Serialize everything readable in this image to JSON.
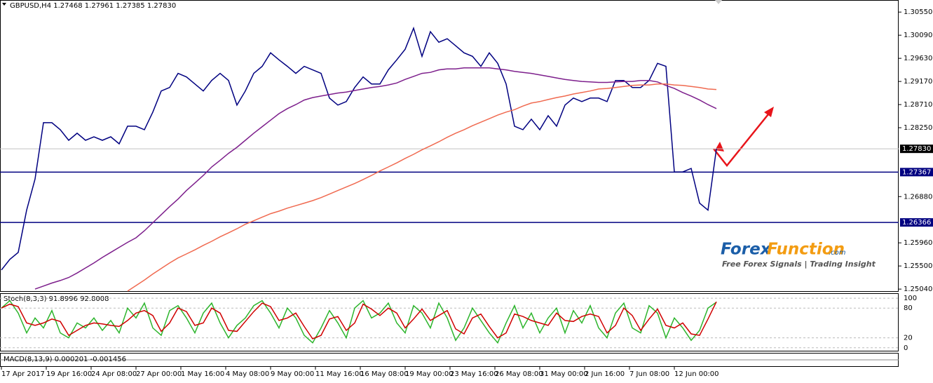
{
  "chart_data": {
    "type": "line",
    "title": "GBPUSD,H4  1.27468 1.27961 1.27385 1.27830",
    "x_labels": [
      "17 Apr 2017",
      "19 Apr 16:00",
      "24 Apr 08:00",
      "27 Apr 00:00",
      "1 May 16:00",
      "4 May 08:00",
      "9 May 00:00",
      "11 May 16:00",
      "16 May 08:00",
      "19 May 00:00",
      "23 May 16:00",
      "26 May 08:00",
      "31 May 00:00",
      "2 Jun 16:00",
      "7 Jun 08:00",
      "12 Jun 00:00"
    ],
    "ylim": [
      1.25,
      1.3079
    ],
    "yticks": [
      {
        "value": 1.3055,
        "label": "1.30550"
      },
      {
        "value": 1.3009,
        "label": "1.30090"
      },
      {
        "value": 1.2963,
        "label": "1.29630"
      },
      {
        "value": 1.2917,
        "label": "1.29170"
      },
      {
        "value": 1.2871,
        "label": "1.28710"
      },
      {
        "value": 1.2825,
        "label": "1.28250"
      },
      {
        "value": 1.2688,
        "label": "1.26880"
      },
      {
        "value": 1.2596,
        "label": "1.25960"
      },
      {
        "value": 1.255,
        "label": "1.25500"
      },
      {
        "value": 1.2504,
        "label": "1.25040"
      }
    ],
    "levels": [
      {
        "value": 1.2783,
        "label": "1.27830",
        "color": "#000000",
        "line_color": "#c0c0c0"
      },
      {
        "value": 1.27367,
        "label": "1.27367",
        "color": "#000080",
        "line_color": "#000080"
      },
      {
        "value": 1.26366,
        "label": "1.26366",
        "color": "#000080",
        "line_color": "#000080"
      }
    ],
    "series": [
      {
        "color": "#000080",
        "values": [
          1.2542,
          1.2563,
          1.2577,
          1.2661,
          1.2723,
          1.2835,
          1.2835,
          1.2821,
          1.28,
          1.2814,
          1.28,
          1.2807,
          1.28,
          1.2807,
          1.2793,
          1.2828,
          1.2828,
          1.2821,
          1.2856,
          1.2898,
          1.2905,
          1.2933,
          1.2926,
          1.2912,
          1.2898,
          1.2919,
          1.2933,
          1.2919,
          1.287,
          1.2898,
          1.2933,
          1.2947,
          1.2974,
          1.296,
          1.2947,
          1.2933,
          1.2947,
          1.294,
          1.2933,
          1.2884,
          1.287,
          1.2877,
          1.2905,
          1.2926,
          1.2912,
          1.2912,
          1.294,
          1.296,
          1.2981,
          1.3023,
          1.2967,
          1.3016,
          1.2995,
          1.3002,
          1.2988,
          1.2974,
          1.2967,
          1.2947,
          1.2974,
          1.2953,
          1.2912,
          1.2828,
          1.2821,
          1.2842,
          1.2821,
          1.2849,
          1.2828,
          1.287,
          1.2884,
          1.2877,
          1.2884,
          1.2884,
          1.2877,
          1.2919,
          1.2919,
          1.2905,
          1.2905,
          1.2919,
          1.2953,
          1.2947,
          1.2737,
          1.2737,
          1.2744,
          1.2675,
          1.2661,
          1.2783
        ]
      },
      {
        "color": "#7d1f8c",
        "values": [
          null,
          null,
          null,
          null,
          1.2504,
          1.251,
          1.2516,
          1.2521,
          1.2527,
          1.2536,
          1.2546,
          1.2556,
          1.2567,
          1.2577,
          1.2587,
          1.2597,
          1.2606,
          1.262,
          1.2636,
          1.2652,
          1.2668,
          1.2683,
          1.27,
          1.2715,
          1.273,
          1.2747,
          1.276,
          1.2774,
          1.2786,
          1.28,
          1.2814,
          1.2827,
          1.284,
          1.2853,
          1.2863,
          1.2871,
          1.288,
          1.2885,
          1.2888,
          1.2891,
          1.2894,
          1.2896,
          1.2899,
          1.2902,
          1.2905,
          1.2907,
          1.291,
          1.2914,
          1.2921,
          1.2927,
          1.2933,
          1.2935,
          1.294,
          1.2942,
          1.2942,
          1.2944,
          1.2944,
          1.2944,
          1.2944,
          1.2942,
          1.294,
          1.2937,
          1.2935,
          1.2933,
          1.293,
          1.2927,
          1.2924,
          1.2921,
          1.2919,
          1.2917,
          1.2916,
          1.2915,
          1.2915,
          1.2916,
          1.2917,
          1.2917,
          1.2919,
          1.2919,
          1.2916,
          1.2909,
          1.2903,
          1.2895,
          1.2888,
          1.288,
          1.2871,
          1.2863
        ]
      },
      {
        "color": "#f06a50",
        "values": [
          null,
          null,
          null,
          null,
          null,
          null,
          null,
          null,
          null,
          null,
          null,
          null,
          null,
          null,
          null,
          1.25,
          1.2511,
          1.2522,
          1.2534,
          1.2545,
          1.2556,
          1.2566,
          1.2574,
          1.2582,
          1.2591,
          1.2599,
          1.2608,
          1.2616,
          1.2624,
          1.2633,
          1.264,
          1.2647,
          1.2654,
          1.2659,
          1.2665,
          1.267,
          1.2675,
          1.268,
          1.2686,
          1.2693,
          1.27,
          1.2707,
          1.2714,
          1.2722,
          1.273,
          1.2739,
          1.2747,
          1.2755,
          1.2764,
          1.2772,
          1.2781,
          1.2789,
          1.2797,
          1.2806,
          1.2814,
          1.2821,
          1.2829,
          1.2836,
          1.2843,
          1.285,
          1.2856,
          1.2861,
          1.2868,
          1.2874,
          1.2877,
          1.2881,
          1.2885,
          1.2888,
          1.2892,
          1.2895,
          1.2898,
          1.2902,
          1.2903,
          1.2905,
          1.2907,
          1.2909,
          1.291,
          1.291,
          1.2912,
          1.2912,
          1.291,
          1.2909,
          1.2907,
          1.2905,
          1.2902,
          1.2901
        ]
      }
    ],
    "stoch": {
      "title": "Stoch(8,3,3) 91.8996 92.8008",
      "ylim": [
        -6,
        110
      ],
      "yticks": [
        100,
        80,
        20,
        0
      ],
      "series": [
        {
          "color": "#2db52d",
          "values": [
            80,
            95,
            70,
            30,
            60,
            40,
            75,
            30,
            20,
            50,
            40,
            60,
            35,
            55,
            30,
            80,
            60,
            90,
            40,
            25,
            75,
            85,
            60,
            30,
            70,
            90,
            50,
            20,
            45,
            60,
            85,
            95,
            70,
            40,
            80,
            60,
            25,
            10,
            40,
            75,
            50,
            20,
            80,
            95,
            60,
            70,
            90,
            50,
            30,
            85,
            70,
            40,
            90,
            60,
            15,
            40,
            80,
            55,
            30,
            10,
            50,
            85,
            40,
            70,
            30,
            60,
            80,
            30,
            75,
            50,
            85,
            40,
            20,
            70,
            90,
            40,
            30,
            85,
            70,
            20,
            60,
            40,
            15,
            35,
            80,
            91.9
          ]
        },
        {
          "color": "#d00000",
          "values": [
            80,
            88,
            83,
            50,
            45,
            50,
            58,
            53,
            25,
            35,
            45,
            50,
            48,
            45,
            43,
            55,
            70,
            75,
            65,
            33,
            50,
            80,
            73,
            45,
            50,
            80,
            70,
            35,
            33,
            53,
            73,
            90,
            83,
            55,
            60,
            70,
            43,
            18,
            25,
            58,
            63,
            35,
            50,
            88,
            78,
            65,
            80,
            70,
            40,
            58,
            78,
            55,
            65,
            75,
            38,
            28,
            60,
            68,
            43,
            20,
            30,
            68,
            63,
            55,
            50,
            45,
            70,
            55,
            53,
            63,
            68,
            63,
            30,
            45,
            80,
            65,
            35,
            58,
            78,
            45,
            40,
            50,
            28,
            25,
            58,
            92.8
          ]
        }
      ]
    },
    "macd": {
      "title": "MACD(8,13,9) 0.000201 -0.001456"
    },
    "logo": {
      "part_1": "Forex",
      "part_2": "Function",
      "suffix": ".com",
      "tagline": "Free Forex Signals | Trading Insight"
    }
  }
}
